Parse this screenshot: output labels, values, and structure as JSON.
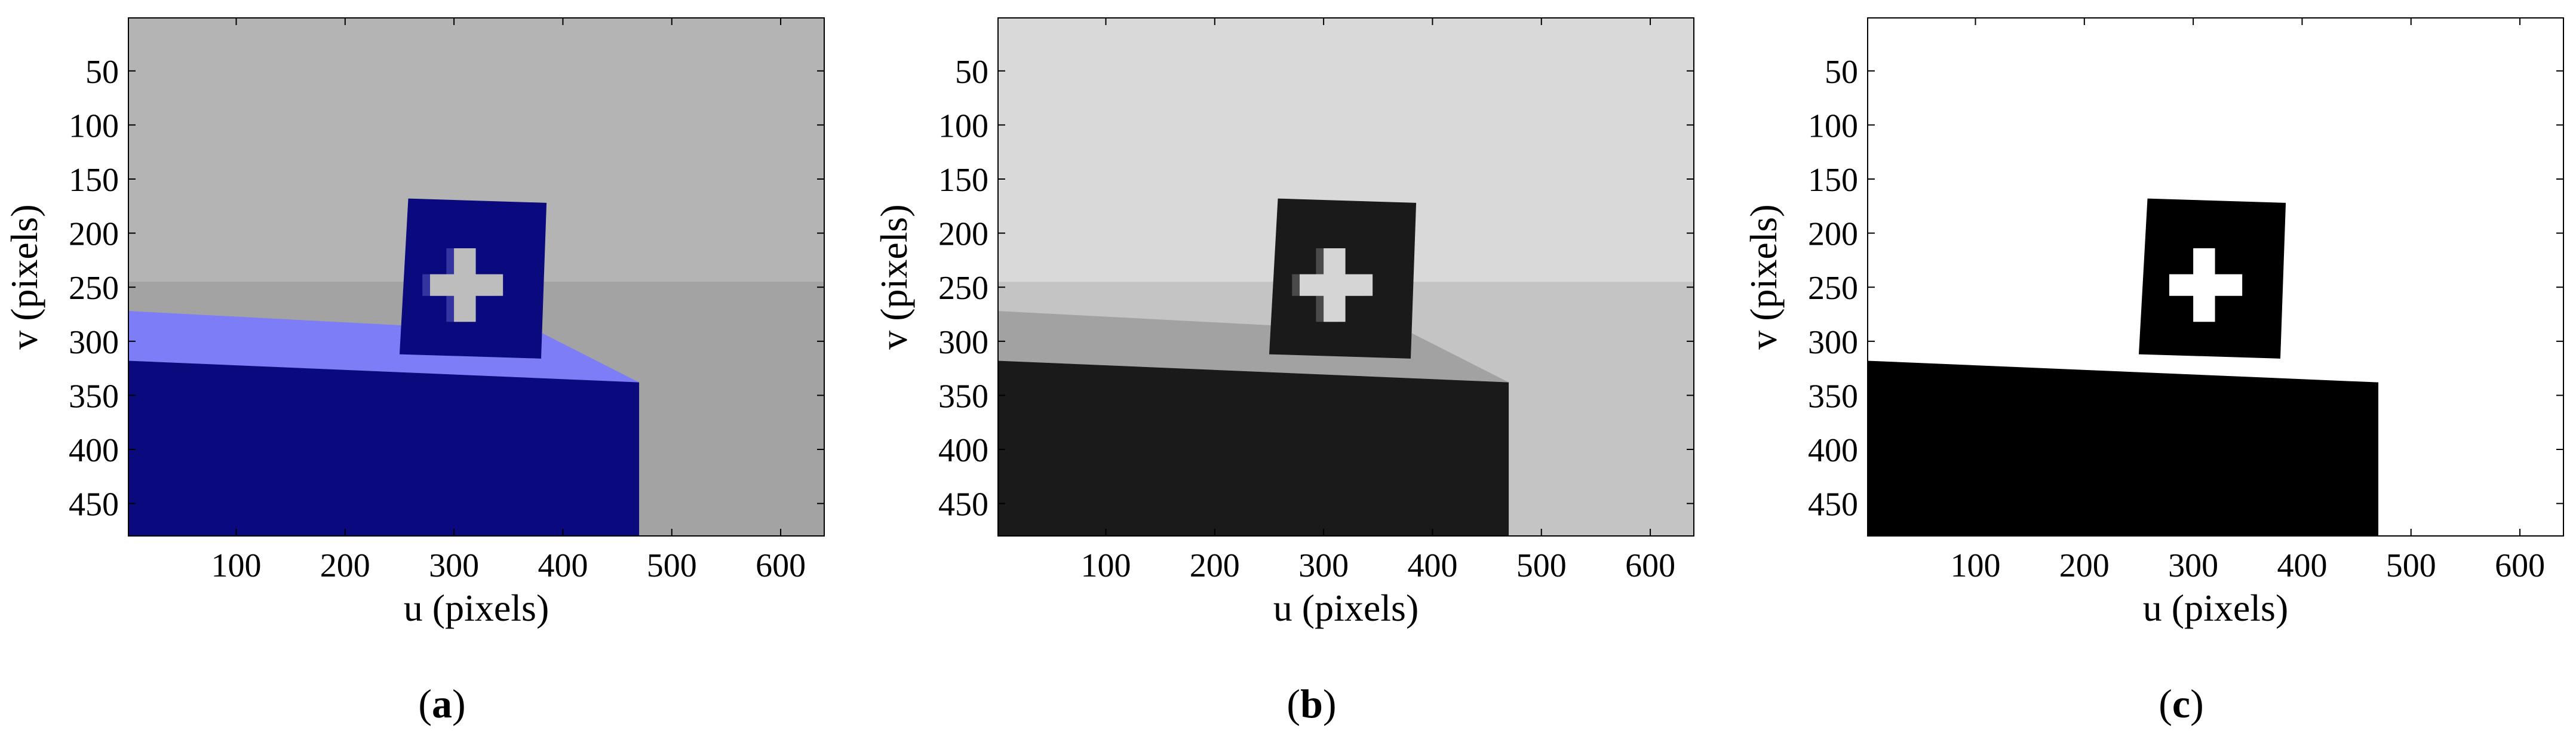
{
  "figure": {
    "panels": [
      {
        "id": "a",
        "caption_open": "(",
        "caption_letter": "a",
        "caption_close": ")",
        "colors": {
          "background": "#B4B4B4",
          "floor": "#A3A3A3",
          "block_top": "#7D7DF7",
          "object": "#0A0A7E",
          "object_inner": "#3434A0",
          "hole": "#BDBDBD"
        }
      },
      {
        "id": "b",
        "caption_open": "(",
        "caption_letter": "b",
        "caption_close": ")",
        "colors": {
          "background": "#D9D9D9",
          "floor": "#C4C4C4",
          "block_top": "#A2A2A2",
          "object": "#1A1A1A",
          "object_inner": "#4A4A4A",
          "hole": "#D5D5D5"
        }
      },
      {
        "id": "c",
        "caption_open": "(",
        "caption_letter": "c",
        "caption_close": ")",
        "colors": {
          "background": "#FFFFFF",
          "floor": "#FFFFFF",
          "block_top": "#FFFFFF",
          "object": "#000000",
          "object_inner": "#000000",
          "hole": "#FFFFFF"
        }
      }
    ],
    "axes": {
      "xlabel": "u (pixels)",
      "ylabel": "v (pixels)",
      "xlim": [
        1,
        640
      ],
      "ylim": [
        1,
        480
      ],
      "xticks": [
        100,
        200,
        300,
        400,
        500,
        600
      ],
      "yticks": [
        50,
        100,
        150,
        200,
        250,
        300,
        350,
        400,
        450
      ],
      "y_direction": "reversed"
    }
  }
}
